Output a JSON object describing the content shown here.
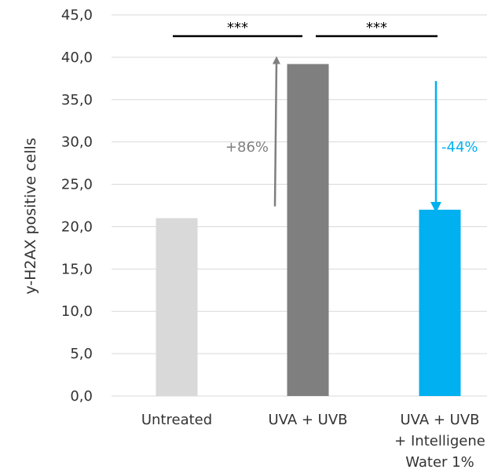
{
  "chart_data": {
    "type": "bar",
    "categories": [
      [
        "Untreated"
      ],
      [
        "UVA + UVB"
      ],
      [
        "UVA + UVB",
        "+ Intelligene",
        "Water 1%"
      ]
    ],
    "values": [
      21.0,
      39.2,
      22.0
    ],
    "colors": [
      "#d9d9d9",
      "#7f7f7f",
      "#00b0f0"
    ],
    "ylabel": "y-H2AX  positive cells",
    "ylim": [
      0,
      45
    ],
    "yticks": [
      "0,0",
      "5,0",
      "10,0",
      "15,0",
      "20,0",
      "25,0",
      "30,0",
      "35,0",
      "40,0",
      "45,0"
    ],
    "grid": true,
    "significance": [
      {
        "label": "***",
        "from": 0,
        "to": 1
      },
      {
        "label": "***",
        "from": 1,
        "to": 2
      }
    ],
    "annotations": [
      {
        "text": "+86%",
        "color": "#7f7f7f",
        "direction": "up",
        "series_index": 1
      },
      {
        "text": "-44%",
        "color": "#00b0f0",
        "direction": "down",
        "series_index": 2
      }
    ]
  }
}
